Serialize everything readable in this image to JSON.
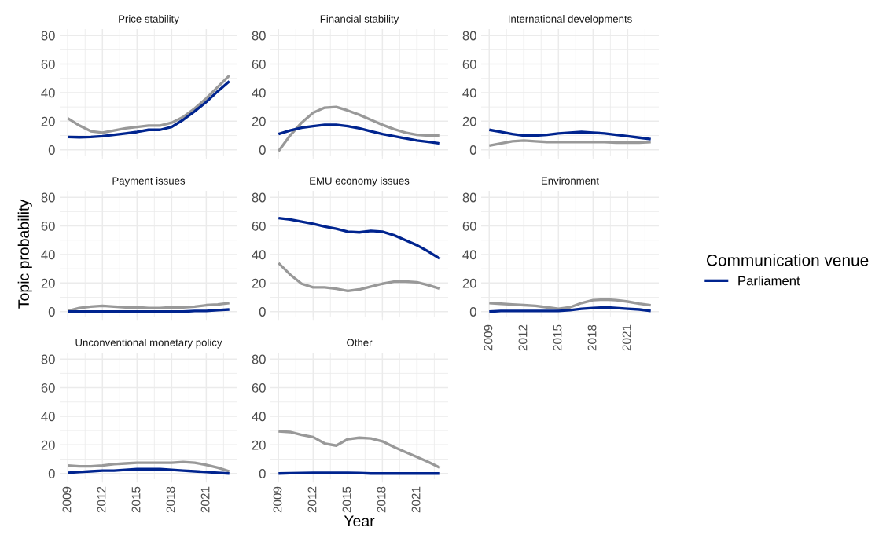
{
  "chart_data": [
    {
      "type": "line",
      "title": "Price stability",
      "x": [
        2009,
        2010,
        2011,
        2012,
        2013,
        2014,
        2015,
        2016,
        2017,
        2018,
        2019,
        2020,
        2021,
        2022,
        2023
      ],
      "xlim": [
        2008.3,
        2023.7
      ],
      "ylim": [
        -4,
        84.5
      ],
      "xticks": [
        2009,
        2012,
        2015,
        2018,
        2021
      ],
      "yticks": [
        0,
        20,
        40,
        60,
        80
      ],
      "grid": true,
      "tick_labels": "y",
      "series": [
        {
          "color": "#999999",
          "values": [
            22,
            17,
            13,
            12,
            13.5,
            15,
            16,
            17,
            17,
            19,
            23,
            29,
            36,
            44,
            52
          ]
        },
        {
          "color": "#00248f",
          "values": [
            9,
            8.8,
            9,
            9.5,
            10.5,
            11.5,
            12.5,
            14,
            14,
            16,
            21,
            27,
            33.5,
            41,
            48
          ]
        }
      ]
    },
    {
      "type": "line",
      "title": "Financial stability",
      "x": [
        2009,
        2010,
        2011,
        2012,
        2013,
        2014,
        2015,
        2016,
        2017,
        2018,
        2019,
        2020,
        2021,
        2022,
        2023
      ],
      "xlim": [
        2008.3,
        2023.7
      ],
      "ylim": [
        -4,
        84.5
      ],
      "xticks": [
        2009,
        2012,
        2015,
        2018,
        2021
      ],
      "yticks": [
        0,
        20,
        40,
        60,
        80
      ],
      "grid": true,
      "tick_labels": "y",
      "series": [
        {
          "color": "#999999",
          "values": [
            -1,
            10,
            19,
            26,
            29.5,
            30,
            27.5,
            24.5,
            21,
            17.5,
            14.5,
            12,
            10.5,
            10,
            10
          ]
        },
        {
          "color": "#00248f",
          "values": [
            11,
            13.5,
            15.5,
            16.5,
            17.5,
            17.5,
            16.5,
            15,
            13,
            11,
            9.5,
            8,
            6.5,
            5.5,
            4.5
          ]
        }
      ]
    },
    {
      "type": "line",
      "title": "International developments",
      "x": [
        2009,
        2010,
        2011,
        2012,
        2013,
        2014,
        2015,
        2016,
        2017,
        2018,
        2019,
        2020,
        2021,
        2022,
        2023
      ],
      "xlim": [
        2008.3,
        2023.7
      ],
      "ylim": [
        -4,
        84.5
      ],
      "xticks": [
        2009,
        2012,
        2015,
        2018,
        2021
      ],
      "yticks": [
        0,
        20,
        40,
        60,
        80
      ],
      "grid": true,
      "tick_labels": "y",
      "series": [
        {
          "color": "#999999",
          "values": [
            3,
            4.5,
            6,
            6.5,
            6,
            5.5,
            5.5,
            5.5,
            5.5,
            5.5,
            5.5,
            5,
            5,
            5,
            5.5
          ]
        },
        {
          "color": "#00248f",
          "values": [
            14,
            12.5,
            11,
            10,
            10,
            10.5,
            11.5,
            12,
            12.5,
            12,
            11.5,
            10.5,
            9.5,
            8.5,
            7.5
          ]
        }
      ]
    },
    {
      "type": "line",
      "title": "Payment issues",
      "ylabel": "Topic probability",
      "x": [
        2009,
        2010,
        2011,
        2012,
        2013,
        2014,
        2015,
        2016,
        2017,
        2018,
        2019,
        2020,
        2021,
        2022,
        2023
      ],
      "xlim": [
        2008.3,
        2023.7
      ],
      "ylim": [
        -4,
        84.5
      ],
      "xticks": [
        2009,
        2012,
        2015,
        2018,
        2021
      ],
      "yticks": [
        0,
        20,
        40,
        60,
        80
      ],
      "grid": true,
      "tick_labels": "y",
      "series": [
        {
          "color": "#999999",
          "values": [
            0.5,
            2.5,
            3.5,
            4,
            3.5,
            3,
            3,
            2.5,
            2.5,
            3,
            3,
            3.5,
            4.5,
            5,
            6
          ]
        },
        {
          "color": "#00248f",
          "values": [
            0,
            0,
            0,
            0,
            0,
            0,
            0,
            0,
            0,
            0,
            0,
            0.5,
            0.5,
            1,
            1.5
          ]
        }
      ]
    },
    {
      "type": "line",
      "title": "EMU economy issues",
      "x": [
        2009,
        2010,
        2011,
        2012,
        2013,
        2014,
        2015,
        2016,
        2017,
        2018,
        2019,
        2020,
        2021,
        2022,
        2023
      ],
      "xlim": [
        2008.3,
        2023.7
      ],
      "ylim": [
        -4,
        84.5
      ],
      "xticks": [
        2009,
        2012,
        2015,
        2018,
        2021
      ],
      "yticks": [
        0,
        20,
        40,
        60,
        80
      ],
      "grid": true,
      "tick_labels": "y",
      "series": [
        {
          "color": "#999999",
          "values": [
            34,
            26,
            19.5,
            17,
            17,
            16,
            14.5,
            15.5,
            17.5,
            19.5,
            21,
            21,
            20.5,
            18.5,
            16
          ]
        },
        {
          "color": "#00248f",
          "values": [
            65.5,
            64.5,
            63,
            61.5,
            59.5,
            58,
            56,
            55.5,
            56.5,
            56,
            53.5,
            50,
            46.5,
            42,
            37
          ]
        }
      ]
    },
    {
      "type": "line",
      "title": "Environment",
      "legend": "right",
      "legend_title": "Communication venue",
      "x": [
        2009,
        2010,
        2011,
        2012,
        2013,
        2014,
        2015,
        2016,
        2017,
        2018,
        2019,
        2020,
        2021,
        2022,
        2023
      ],
      "xlim": [
        2008.3,
        2023.7
      ],
      "ylim": [
        -4,
        84.5
      ],
      "xticks": [
        2009,
        2012,
        2015,
        2018,
        2021
      ],
      "yticks": [
        0,
        20,
        40,
        60,
        80
      ],
      "grid": true,
      "series": [
        {
          "color": "#999999",
          "values": [
            6,
            5.5,
            5,
            4.5,
            4,
            3,
            2,
            3,
            6,
            8,
            8.5,
            8,
            7,
            5.5,
            4.5
          ]
        },
        {
          "name": "Parliament",
          "color": "#00248f",
          "values": [
            0,
            0.5,
            0.5,
            0.5,
            0.5,
            0.5,
            0.5,
            1,
            2,
            2.5,
            3,
            2.5,
            2,
            1.5,
            0.5
          ]
        }
      ]
    },
    {
      "type": "line",
      "title": "Unconventional monetary policy",
      "x": [
        2009,
        2010,
        2011,
        2012,
        2013,
        2014,
        2015,
        2016,
        2017,
        2018,
        2019,
        2020,
        2021,
        2022,
        2023
      ],
      "xlim": [
        2008.3,
        2023.7
      ],
      "ylim": [
        -4,
        84.5
      ],
      "xticks": [
        2009,
        2012,
        2015,
        2018,
        2021
      ],
      "yticks": [
        0,
        20,
        40,
        60,
        80
      ],
      "grid": true,
      "series": [
        {
          "color": "#999999",
          "values": [
            5.5,
            5,
            5,
            5.5,
            6.5,
            7,
            7.5,
            7.5,
            7.5,
            7.5,
            8,
            7.5,
            6,
            4,
            1.5
          ]
        },
        {
          "color": "#00248f",
          "values": [
            0.5,
            1,
            1.5,
            2,
            2,
            2.5,
            3,
            3,
            3,
            2.5,
            2,
            1.5,
            1,
            0.5,
            0
          ]
        }
      ]
    },
    {
      "type": "line",
      "title": "Other",
      "xlabel": "Year",
      "x": [
        2009,
        2010,
        2011,
        2012,
        2013,
        2014,
        2015,
        2016,
        2017,
        2018,
        2019,
        2020,
        2021,
        2022,
        2023
      ],
      "xlim": [
        2008.3,
        2023.7
      ],
      "ylim": [
        -4,
        84.5
      ],
      "xticks": [
        2009,
        2012,
        2015,
        2018,
        2021
      ],
      "yticks": [
        0,
        20,
        40,
        60,
        80
      ],
      "grid": true,
      "series": [
        {
          "color": "#999999",
          "values": [
            29.5,
            29,
            27,
            25.5,
            21,
            19.5,
            24,
            25,
            24.5,
            22.5,
            18.5,
            15,
            11.5,
            8,
            4
          ]
        },
        {
          "color": "#00248f",
          "values": [
            0,
            0.2,
            0.3,
            0.5,
            0.5,
            0.5,
            0.5,
            0.3,
            0,
            0,
            0,
            0,
            0,
            0,
            0
          ]
        }
      ]
    }
  ]
}
